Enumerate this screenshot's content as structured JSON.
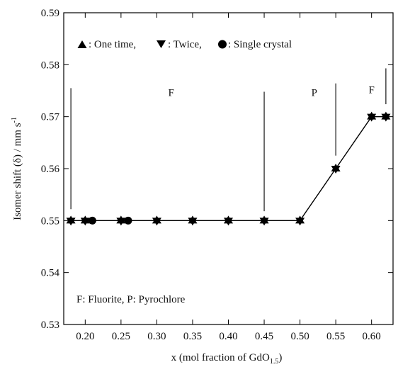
{
  "chart_data": {
    "type": "scatter",
    "title": "",
    "xlabel": "x (mol fraction of GdO",
    "xlabel_sub": "1.5",
    "xlabel_end": ")",
    "ylabel": "Isomer shift (δ) / mm s",
    "ylabel_sup": "-1",
    "xlim": [
      0.17,
      0.63
    ],
    "ylim": [
      0.53,
      0.59
    ],
    "x_ticks": [
      0.2,
      0.25,
      0.3,
      0.35,
      0.4,
      0.45,
      0.5,
      0.55,
      0.6
    ],
    "x_tick_labels": [
      "0.20",
      "0.25",
      "0.30",
      "0.35",
      "0.40",
      "0.45",
      "0.50",
      "0.55",
      "0.60"
    ],
    "y_ticks": [
      0.53,
      0.54,
      0.55,
      0.56,
      0.57,
      0.58,
      0.59
    ],
    "y_tick_labels": [
      "0.53",
      "0.54",
      "0.55",
      "0.56",
      "0.57",
      "0.58",
      "0.59"
    ],
    "grid": false,
    "legend_text": [
      ": One time, ",
      ": Twice, ",
      ": Single crystal"
    ],
    "series": [
      {
        "name": "One time",
        "marker": "triangle-up",
        "x": [
          0.18,
          0.2,
          0.25,
          0.3,
          0.35,
          0.4,
          0.45,
          0.5,
          0.55,
          0.6,
          0.62
        ],
        "y": [
          0.55,
          0.55,
          0.55,
          0.55,
          0.55,
          0.55,
          0.55,
          0.55,
          0.56,
          0.57,
          0.57
        ]
      },
      {
        "name": "Twice",
        "marker": "triangle-down",
        "x": [
          0.18,
          0.2,
          0.25,
          0.3,
          0.35,
          0.4,
          0.45,
          0.5,
          0.55,
          0.6,
          0.62
        ],
        "y": [
          0.55,
          0.55,
          0.55,
          0.55,
          0.55,
          0.55,
          0.55,
          0.55,
          0.56,
          0.57,
          0.57
        ]
      },
      {
        "name": "Single crystal",
        "marker": "circle",
        "x": [
          0.21,
          0.26
        ],
        "y": [
          0.55,
          0.55
        ]
      }
    ],
    "connecting_line": {
      "x": [
        0.18,
        0.5,
        0.55,
        0.6,
        0.62
      ],
      "y": [
        0.55,
        0.55,
        0.56,
        0.57,
        0.57
      ]
    },
    "phase_boundaries": [
      {
        "x": 0.18,
        "y": [
          0.5522,
          0.5755
        ]
      },
      {
        "x": 0.45,
        "y": [
          0.5518,
          0.5748
        ]
      },
      {
        "x": 0.55,
        "y": [
          0.5625,
          0.5764
        ]
      },
      {
        "x": 0.62,
        "y": [
          0.5724,
          0.5793
        ]
      }
    ],
    "region_labels": [
      {
        "text": "F",
        "x": 0.32,
        "y": 0.574
      },
      {
        "text": "P",
        "x": 0.52,
        "y": 0.574
      },
      {
        "text": "F",
        "x": 0.6,
        "y": 0.5745
      }
    ],
    "annotation": "F: Fluorite, P: Pyrochlore"
  }
}
